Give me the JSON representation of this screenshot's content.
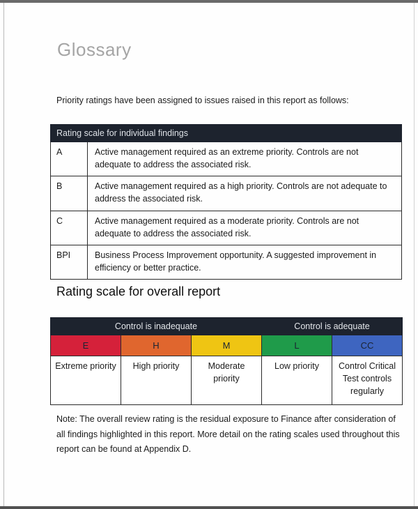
{
  "page": {
    "title": "Glossary",
    "intro": "Priority ratings have been assigned to issues raised in this report as follows:"
  },
  "findings_table": {
    "header": "Rating scale for individual findings",
    "rows": [
      {
        "code": "A",
        "description": "Active management required as an extreme priority. Controls are not adequate to address the associated risk."
      },
      {
        "code": "B",
        "description": "Active management required as a high priority. Controls are not adequate to address the associated risk."
      },
      {
        "code": "C",
        "description": "Active management required as a moderate priority. Controls are not adequate to address the associated risk."
      },
      {
        "code": "BPI",
        "description": "Business Process Improvement opportunity. A suggested improvement in efficiency or better practice."
      }
    ]
  },
  "overall_section": {
    "heading": "Rating scale for overall report",
    "group_headers": [
      {
        "label": "Control is inadequate",
        "span": 3
      },
      {
        "label": "Control is adequate",
        "span": 2
      }
    ],
    "ratings": [
      {
        "code": "E",
        "label": "Extreme priority",
        "color": "#d5213a"
      },
      {
        "code": "H",
        "label": "High priority",
        "color": "#e0662e"
      },
      {
        "code": "M",
        "label": "Moderate priority",
        "color": "#efc513"
      },
      {
        "code": "L",
        "label": "Low priority",
        "color": "#1f9b4a"
      },
      {
        "code": "CC",
        "label": "Control Critical Test controls regularly",
        "color": "#3e65c0"
      }
    ]
  },
  "note": "Note: The overall review rating is the residual exposure to Finance after consideration of all findings highlighted in this report. More detail on the rating scales used throughout this report can be found at Appendix D.",
  "colors": {
    "table_header_bg": "#1d232e",
    "header_text": "#dde1e6",
    "code_text": "#1b2433"
  }
}
